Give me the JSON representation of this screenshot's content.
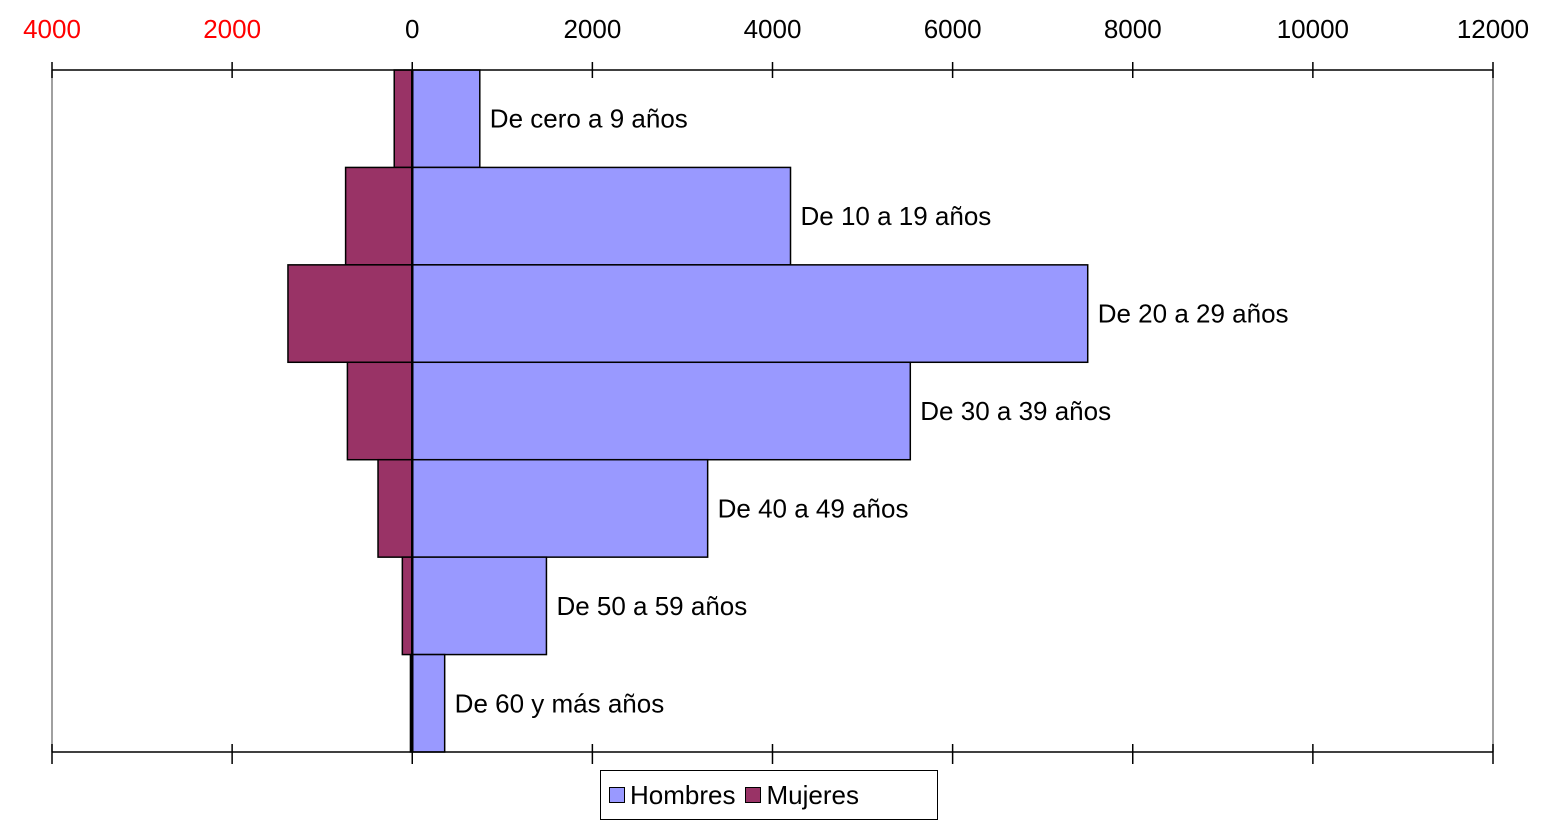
{
  "chart_data": {
    "type": "bar",
    "orientation": "horizontal",
    "categories": [
      "De cero a 9 años",
      "De 10 a 19 años",
      "De 20 a 29 años",
      "De 30 a 39 años",
      "De 40 a 49 años",
      "De 50 a 59 años",
      "De 60 y más años"
    ],
    "series": [
      {
        "name": "Hombres",
        "color": "#9999ff",
        "values": [
          750,
          4200,
          7500,
          5530,
          3280,
          1490,
          360
        ]
      },
      {
        "name": "Mujeres",
        "color": "#993366",
        "values": [
          200,
          740,
          1380,
          720,
          380,
          110,
          20
        ]
      }
    ],
    "x_ticks_right": [
      "0",
      "2000",
      "4000",
      "6000",
      "8000",
      "10000",
      "12000"
    ],
    "x_ticks_left": [
      "4000",
      "2000"
    ],
    "x_tick_left_color": "#ff0000",
    "xlim": [
      -4000,
      12000
    ],
    "grid": false,
    "legend_position": "bottom"
  }
}
